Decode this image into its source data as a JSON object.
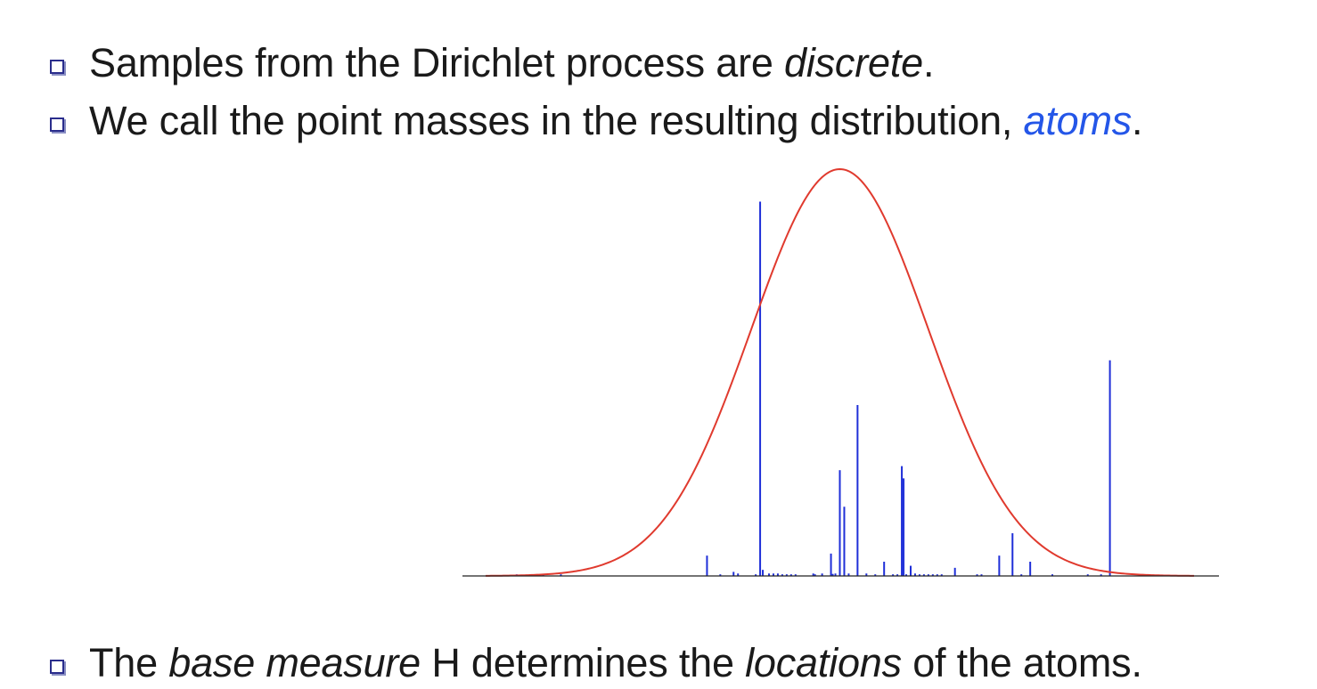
{
  "bullets": [
    {
      "parts": [
        {
          "text": "Samples from the Dirichlet process are ",
          "style": "plain"
        },
        {
          "text": "discrete",
          "style": "italic"
        },
        {
          "text": ".",
          "style": "plain"
        }
      ]
    },
    {
      "parts": [
        {
          "text": "We call the point masses in the resulting distribution, ",
          "style": "plain"
        },
        {
          "text": "atoms",
          "style": "italic-blue"
        },
        {
          "text": ".",
          "style": "plain"
        }
      ]
    },
    {
      "parts": [
        {
          "text": "The ",
          "style": "plain"
        },
        {
          "text": "base measure",
          "style": "italic"
        },
        {
          "text": " H determines the ",
          "style": "plain"
        },
        {
          "text": "locations",
          "style": "italic"
        },
        {
          "text": " of the atoms.",
          "style": "plain"
        }
      ]
    }
  ],
  "colors": {
    "density_curve": "#e03a2e",
    "atoms": "#1f2fd8",
    "axis": "#222222",
    "emphasis": "#2456e8",
    "bullet": "#2a2d8c"
  },
  "chart_data": {
    "type": "line",
    "title": "",
    "xlabel": "",
    "ylabel": "",
    "grid": false,
    "xlim": [
      -4,
      4
    ],
    "ylim": [
      0,
      1
    ],
    "series": [
      {
        "kind": "density-curve",
        "mean": 0,
        "sd": 1,
        "x_range": [
          -4,
          4
        ],
        "peak": 1.0
      },
      {
        "kind": "atoms",
        "x": [
          -3.65,
          -3.35,
          -3.15,
          -1.5,
          -1.35,
          -1.2,
          -1.15,
          -0.95,
          -0.9,
          -0.87,
          -0.8,
          -0.75,
          -0.7,
          -0.65,
          -0.6,
          -0.55,
          -0.5,
          -0.3,
          -0.28,
          -0.2,
          -0.1,
          -0.08,
          -0.05,
          0.0,
          0.05,
          0.1,
          0.2,
          0.3,
          0.4,
          0.5,
          0.6,
          0.65,
          0.7,
          0.72,
          0.75,
          0.8,
          0.85,
          0.9,
          0.95,
          1.0,
          1.05,
          1.1,
          1.15,
          1.3,
          1.55,
          1.6,
          1.8,
          1.95,
          2.05,
          2.15,
          2.4,
          2.8,
          2.95,
          3.05
        ],
        "y": [
          0.004,
          0.004,
          0.004,
          0.05,
          0.004,
          0.01,
          0.006,
          0.004,
          0.92,
          0.015,
          0.006,
          0.006,
          0.006,
          0.004,
          0.004,
          0.004,
          0.004,
          0.006,
          0.004,
          0.006,
          0.055,
          0.005,
          0.006,
          0.26,
          0.17,
          0.006,
          0.42,
          0.006,
          0.004,
          0.035,
          0.004,
          0.004,
          0.27,
          0.24,
          0.004,
          0.025,
          0.006,
          0.004,
          0.004,
          0.004,
          0.004,
          0.004,
          0.004,
          0.02,
          0.004,
          0.004,
          0.05,
          0.105,
          0.004,
          0.035,
          0.004,
          0.004,
          0.004,
          0.53
        ]
      }
    ]
  }
}
